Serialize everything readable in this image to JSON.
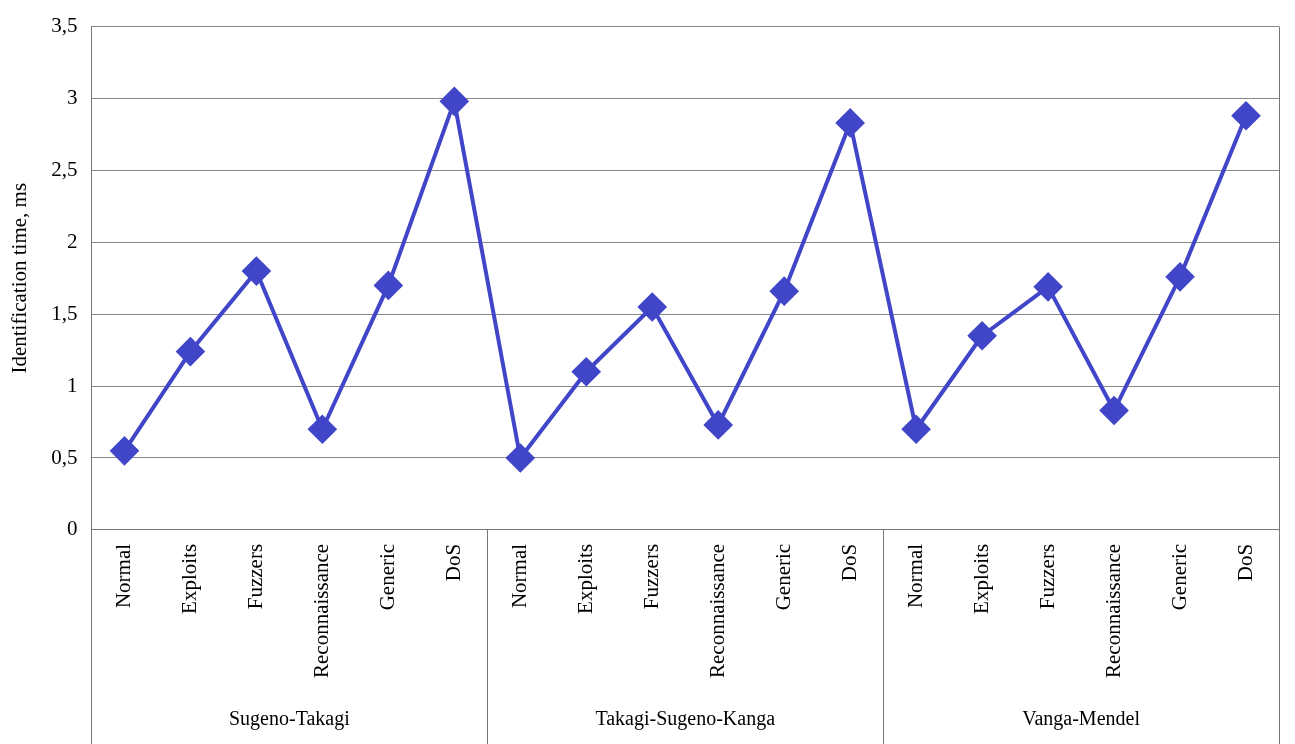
{
  "chart_data": {
    "type": "line",
    "ylabel": "Identification time, ms",
    "categories": [
      "Normal",
      "Exploits",
      "Fuzzers",
      "Reconnaissance",
      "Generic",
      "DoS",
      "Normal",
      "Exploits",
      "Fuzzers",
      "Reconnaissance",
      "Generic",
      "DoS",
      "Normal",
      "Exploits",
      "Fuzzers",
      "Reconnaissance",
      "Generic",
      "DoS"
    ],
    "series": [
      {
        "color": "#4146c8",
        "values": [
          0.55,
          1.24,
          1.8,
          0.7,
          1.7,
          2.98,
          0.5,
          1.1,
          1.55,
          0.73,
          1.66,
          2.83,
          0.7,
          1.35,
          1.69,
          0.83,
          1.76,
          2.88
        ]
      }
    ],
    "annotations": [
      "Sugeno-Takagi",
      "Takagi-Sugeno-Kanga",
      "Vanga-Mendel"
    ],
    "ylim": [
      0,
      3.5
    ],
    "yticks": [
      0,
      {
        "value": 0.5,
        "label": "0,5"
      },
      1,
      {
        "value": 1.5,
        "label": "1,5"
      },
      2,
      {
        "value": 2.5,
        "label": "2,5"
      },
      3,
      {
        "value": 3.5,
        "label": "3,5"
      }
    ],
    "grid": "y",
    "legend": false,
    "marker": "diamond",
    "line_style": "solid"
  }
}
